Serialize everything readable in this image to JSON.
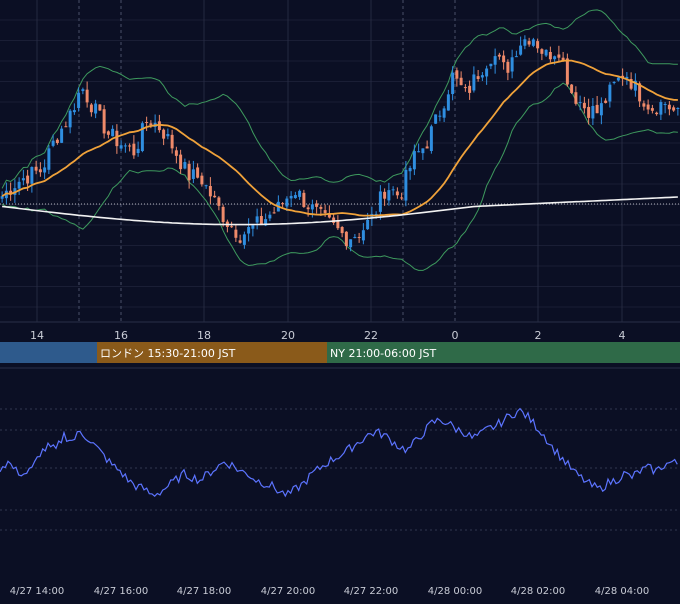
{
  "theme": {
    "background": "#0b0f24",
    "grid": "#2a2f47",
    "grid_dash": "#59607a",
    "axis_text": "#c9ccd6",
    "candle_up": "#2f8ee0",
    "candle_down": "#ef8a6a",
    "bollinger": "#3e9a5e",
    "ma_short": "#f0a23a",
    "ma_long": "#f2f2f2",
    "reference_line": "#ffffff",
    "oscillator": "#5c74ff",
    "session_tokyo": "#2e5a8c",
    "session_london": "#8a5a1a",
    "session_ny": "#2f6a48"
  },
  "chart_data": [
    {
      "type": "candlestick",
      "title": "",
      "xlabel": "",
      "ylabel": "",
      "x_tick_labels": [
        "14",
        "16",
        "18",
        "20",
        "22",
        "0",
        "2",
        "4"
      ],
      "session_bands": [
        {
          "label": "",
          "color_key": "session_tokyo"
        },
        {
          "label": "ロンドン 15:30-21:00 JST",
          "color_key": "session_london"
        },
        {
          "label": "NY 21:00-06:00 JST",
          "color_key": "session_ny"
        }
      ],
      "y_range_approx": [
        0,
        100
      ],
      "grid": true,
      "series": [
        {
          "name": "",
          "type": "bollinger_bands"
        },
        {
          "name": "",
          "type": "moving_average_short"
        },
        {
          "name": "",
          "type": "moving_average_long"
        }
      ],
      "close_path": [
        40,
        45,
        48,
        50,
        62,
        70,
        82,
        73,
        64,
        60,
        57,
        70,
        66,
        58,
        48,
        47,
        38,
        30,
        25,
        28,
        32,
        36,
        43,
        37,
        32,
        28,
        24,
        26,
        32,
        44,
        40,
        54,
        60,
        72,
        86,
        79,
        88,
        95,
        88,
        99,
        102,
        94,
        97,
        80,
        74,
        72,
        81,
        88,
        80,
        74,
        76,
        71
      ]
    },
    {
      "type": "line",
      "title": "",
      "xlabel": "",
      "ylabel": "",
      "x_tick_labels": [
        "4/27 14:00",
        "4/27 16:00",
        "4/27 18:00",
        "4/27 20:00",
        "4/27 22:00",
        "4/28 00:00",
        "4/28 02:00",
        "4/28 04:00"
      ],
      "y_range_approx": [
        0,
        100
      ],
      "grid": true,
      "series": [
        {
          "name": "",
          "values": [
            48,
            52,
            46,
            44,
            47,
            58,
            62,
            60,
            70,
            66,
            72,
            68,
            62,
            56,
            50,
            46,
            40,
            36,
            34,
            30,
            32,
            36,
            40,
            44,
            42,
            40,
            44,
            48,
            52,
            50,
            46,
            44,
            40,
            38,
            36,
            32,
            30,
            34,
            38,
            44,
            48,
            52,
            55,
            58,
            62,
            66,
            70,
            72,
            70,
            66,
            62,
            60,
            66,
            72,
            78,
            80,
            78,
            74,
            72,
            68,
            70,
            74,
            76,
            80,
            84,
            86,
            82,
            76,
            70,
            62,
            56,
            50,
            44,
            40,
            36,
            34,
            38,
            40,
            44,
            42,
            46,
            48,
            46,
            50,
            52,
            50
          ]
        }
      ]
    }
  ]
}
